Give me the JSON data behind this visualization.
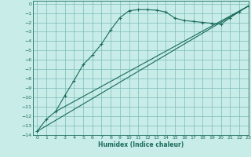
{
  "xlabel": "Humidex (Indice chaleur)",
  "bg_color": "#c8ece8",
  "grid_color": "#7bbcb8",
  "line_color": "#1a6b5a",
  "xlim": [
    -0.5,
    23
  ],
  "ylim": [
    -14,
    0.3
  ],
  "xticks": [
    0,
    1,
    2,
    3,
    4,
    5,
    6,
    7,
    8,
    9,
    10,
    11,
    12,
    13,
    14,
    15,
    16,
    17,
    18,
    19,
    20,
    21,
    22,
    23
  ],
  "yticks": [
    0,
    -1,
    -2,
    -3,
    -4,
    -5,
    -6,
    -7,
    -8,
    -9,
    -10,
    -11,
    -12,
    -13,
    -14
  ],
  "curve1_x": [
    0,
    1,
    2,
    3,
    4,
    5,
    6,
    7,
    8,
    9,
    10,
    11,
    12,
    13,
    14,
    15,
    16,
    17,
    18,
    19,
    20,
    21,
    22,
    23
  ],
  "curve1_y": [
    -13.6,
    -12.3,
    -11.5,
    -9.8,
    -8.2,
    -6.5,
    -5.5,
    -4.3,
    -2.8,
    -1.5,
    -0.75,
    -0.65,
    -0.65,
    -0.7,
    -0.9,
    -1.55,
    -1.8,
    -1.9,
    -2.0,
    -2.1,
    -2.2,
    -1.5,
    -0.85,
    -0.25
  ],
  "curve2_x": [
    0,
    23
  ],
  "curve2_y": [
    -13.6,
    -0.25
  ],
  "curve3_x": [
    2,
    23
  ],
  "curve3_y": [
    -11.5,
    -0.25
  ]
}
